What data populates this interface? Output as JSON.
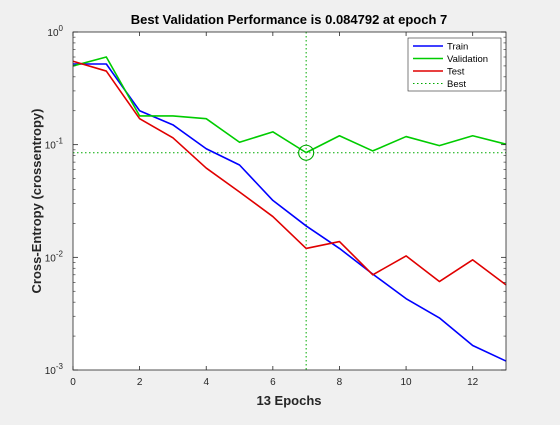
{
  "chart_data": {
    "type": "line",
    "title": "Best Validation Performance is 0.084792 at epoch 7",
    "xlabel": "13 Epochs",
    "ylabel": "Cross-Entropy  (crossentropy)",
    "xlim": [
      0,
      13
    ],
    "ylim": [
      0.001,
      1
    ],
    "yscale": "log",
    "x_ticks": [
      0,
      2,
      4,
      6,
      8,
      10,
      12
    ],
    "y_ticks": [
      {
        "value": 0.001,
        "base": "10",
        "exp": "-3"
      },
      {
        "value": 0.01,
        "base": "10",
        "exp": "-2"
      },
      {
        "value": 0.1,
        "base": "10",
        "exp": "-1"
      },
      {
        "value": 1,
        "base": "10",
        "exp": "0"
      }
    ],
    "grid": false,
    "legend_position": "top-right",
    "x": [
      0,
      1,
      2,
      3,
      4,
      5,
      6,
      7,
      8,
      9,
      10,
      11,
      12,
      13
    ],
    "series": [
      {
        "name": "Train",
        "color": "#0000ff",
        "values": [
          0.52,
          0.52,
          0.2,
          0.15,
          0.092,
          0.066,
          0.032,
          0.019,
          0.012,
          0.0071,
          0.0043,
          0.0029,
          0.00165,
          0.0012
        ]
      },
      {
        "name": "Validation",
        "color": "#00cc00",
        "values": [
          0.5,
          0.6,
          0.18,
          0.18,
          0.17,
          0.105,
          0.13,
          0.085,
          0.12,
          0.088,
          0.118,
          0.098,
          0.12,
          0.101
        ]
      },
      {
        "name": "Test",
        "color": "#e00000",
        "values": [
          0.55,
          0.45,
          0.17,
          0.115,
          0.062,
          0.038,
          0.023,
          0.012,
          0.0138,
          0.007,
          0.0103,
          0.0061,
          0.0095,
          0.0057
        ]
      }
    ],
    "best": {
      "name": "Best",
      "epoch": 7,
      "value": 0.084792,
      "color": "#00aa00"
    }
  }
}
